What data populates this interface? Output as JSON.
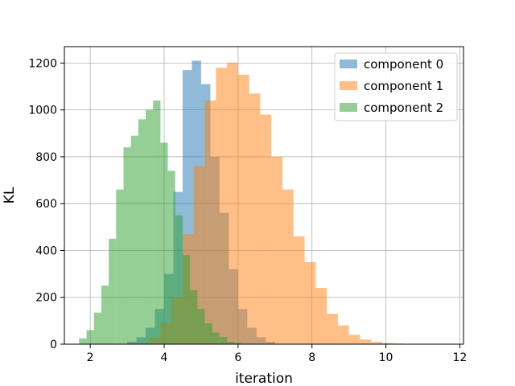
{
  "chart_data": {
    "type": "histogram",
    "title": "",
    "xlabel": "iteration",
    "ylabel": "KL",
    "xlim": [
      1.3,
      12.1
    ],
    "ylim": [
      0,
      1270
    ],
    "xticks": [
      2,
      4,
      6,
      8,
      10,
      12
    ],
    "yticks": [
      0,
      200,
      400,
      600,
      800,
      1000,
      1200
    ],
    "grid": true,
    "legend_position": "top-right",
    "bar_alpha": 0.5,
    "series": [
      {
        "name": "component 0",
        "color": "#1f77b4",
        "bins": [
          [
            3.0,
            3.25,
            10
          ],
          [
            3.25,
            3.5,
            30
          ],
          [
            3.5,
            3.75,
            70
          ],
          [
            3.75,
            4.0,
            150
          ],
          [
            4.0,
            4.25,
            300
          ],
          [
            4.25,
            4.5,
            650
          ],
          [
            4.5,
            4.75,
            1170
          ],
          [
            4.75,
            5.0,
            1210
          ],
          [
            5.0,
            5.25,
            1110
          ],
          [
            5.25,
            5.5,
            800
          ],
          [
            5.5,
            5.75,
            560
          ],
          [
            5.75,
            6.0,
            320
          ],
          [
            6.0,
            6.25,
            150
          ],
          [
            6.25,
            6.5,
            70
          ],
          [
            6.5,
            6.75,
            30
          ],
          [
            6.75,
            7.0,
            10
          ]
        ]
      },
      {
        "name": "component 1",
        "color": "#ff7f0e",
        "bins": [
          [
            3.3,
            3.6,
            5
          ],
          [
            3.6,
            3.9,
            30
          ],
          [
            3.9,
            4.2,
            90
          ],
          [
            4.2,
            4.5,
            200
          ],
          [
            4.5,
            4.8,
            470
          ],
          [
            4.8,
            5.1,
            760
          ],
          [
            5.1,
            5.4,
            1040
          ],
          [
            5.4,
            5.7,
            1180
          ],
          [
            5.7,
            6.0,
            1200
          ],
          [
            6.0,
            6.3,
            1150
          ],
          [
            6.3,
            6.6,
            1070
          ],
          [
            6.6,
            6.9,
            980
          ],
          [
            6.9,
            7.2,
            800
          ],
          [
            7.2,
            7.5,
            660
          ],
          [
            7.5,
            7.8,
            460
          ],
          [
            7.8,
            8.1,
            350
          ],
          [
            8.1,
            8.4,
            240
          ],
          [
            8.4,
            8.7,
            130
          ],
          [
            8.7,
            9.0,
            80
          ],
          [
            9.0,
            9.3,
            40
          ],
          [
            9.3,
            9.6,
            20
          ],
          [
            9.6,
            9.9,
            10
          ],
          [
            9.9,
            10.2,
            5
          ],
          [
            10.2,
            10.5,
            3
          ],
          [
            10.5,
            10.8,
            1
          ],
          [
            10.8,
            11.1,
            1
          ],
          [
            11.1,
            11.4,
            1
          ],
          [
            11.4,
            11.7,
            1
          ]
        ]
      },
      {
        "name": "component 2",
        "color": "#2ca02c",
        "bins": [
          [
            1.7,
            1.9,
            25
          ],
          [
            1.9,
            2.1,
            60
          ],
          [
            2.1,
            2.3,
            135
          ],
          [
            2.3,
            2.5,
            250
          ],
          [
            2.5,
            2.7,
            450
          ],
          [
            2.7,
            2.9,
            660
          ],
          [
            2.9,
            3.1,
            840
          ],
          [
            3.1,
            3.3,
            890
          ],
          [
            3.3,
            3.5,
            960
          ],
          [
            3.5,
            3.7,
            1000
          ],
          [
            3.7,
            3.9,
            1040
          ],
          [
            3.9,
            4.1,
            860
          ],
          [
            4.1,
            4.3,
            740
          ],
          [
            4.3,
            4.5,
            550
          ],
          [
            4.5,
            4.7,
            380
          ],
          [
            4.7,
            4.9,
            230
          ],
          [
            4.9,
            5.1,
            150
          ],
          [
            5.1,
            5.3,
            90
          ],
          [
            5.3,
            5.5,
            50
          ],
          [
            5.5,
            5.7,
            30
          ],
          [
            5.7,
            5.9,
            10
          ],
          [
            5.9,
            6.1,
            5
          ]
        ]
      }
    ]
  }
}
